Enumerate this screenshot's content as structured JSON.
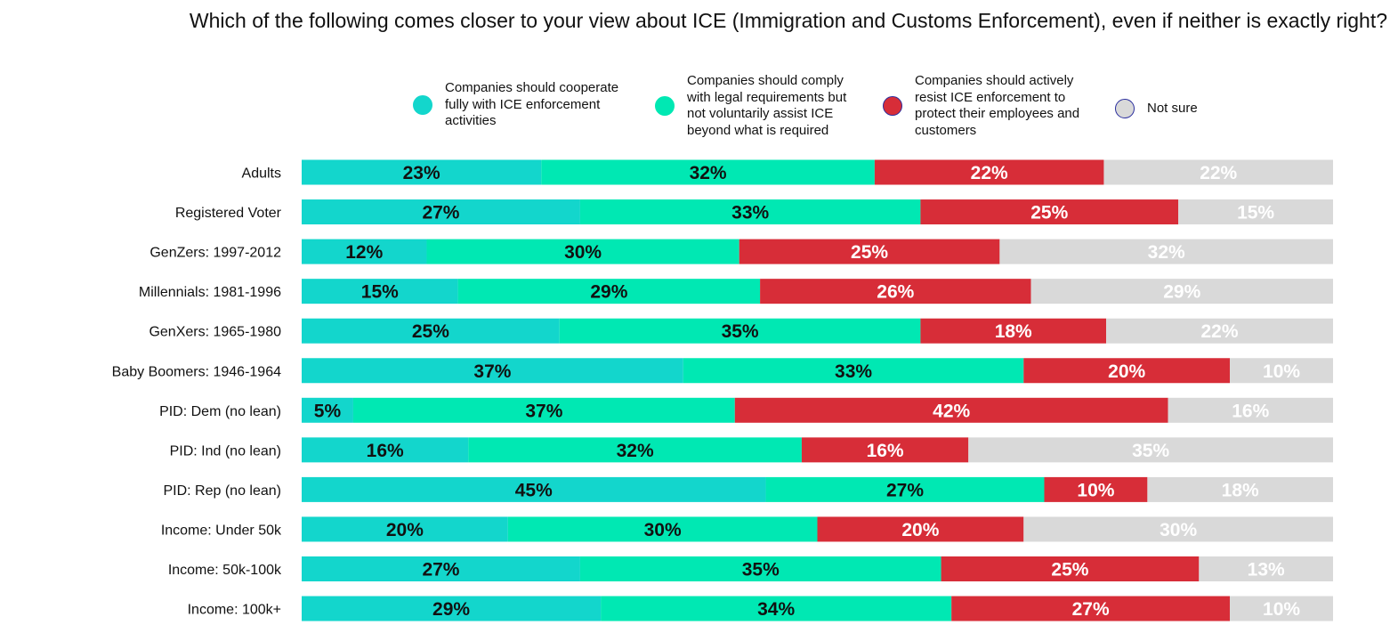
{
  "chart_data": {
    "type": "bar",
    "orientation": "horizontal",
    "stacked": true,
    "title": "Which of the following comes closer to your view about ICE (Immigration and Customs Enforcement), even if neither is exactly right?",
    "legend_position": "top",
    "categories": [
      "Adults",
      "Registered Voter",
      "GenZers: 1997-2012",
      "Millennials: 1981-1996",
      "GenXers: 1965-1980",
      "Baby Boomers: 1946-1964",
      "PID: Dem (no lean)",
      "PID: Ind (no lean)",
      "PID: Rep (no lean)",
      "Income: Under 50k",
      "Income: 50k-100k",
      "Income: 100k+"
    ],
    "series": [
      {
        "name": "Companies should cooperate fully with ICE enforcement activities",
        "legend_lines": [
          "Companies should cooperate",
          "fully with ICE enforcement",
          "activities"
        ],
        "color": "#13d6cc",
        "swatch_border": "#13d6cc",
        "label_color": "#111111",
        "values": [
          23,
          27,
          12,
          15,
          25,
          37,
          5,
          16,
          45,
          20,
          27,
          29
        ]
      },
      {
        "name": "Companies should comply with legal requirements but not voluntarily assist ICE beyond what is required",
        "legend_lines": [
          "Companies should comply",
          "with legal requirements but",
          "not voluntarily assist ICE",
          "beyond what is required"
        ],
        "color": "#00e8b3",
        "swatch_border": "#00e8b3",
        "label_color": "#111111",
        "values": [
          32,
          33,
          30,
          29,
          35,
          33,
          37,
          32,
          27,
          30,
          35,
          34
        ]
      },
      {
        "name": "Companies should actively resist ICE enforcement to protect their employees and customers",
        "legend_lines": [
          "Companies should actively",
          "resist ICE enforcement to",
          "protect their employees and",
          "customers"
        ],
        "color": "#d72d38",
        "swatch_border": "#2b2f9e",
        "label_color": "#ffffff",
        "values": [
          22,
          25,
          25,
          26,
          18,
          20,
          42,
          16,
          10,
          20,
          25,
          27
        ]
      },
      {
        "name": "Not sure",
        "legend_lines": [
          "Not sure"
        ],
        "color": "#d9d9d9",
        "swatch_border": "#2b2f9e",
        "label_color": "#ffffff",
        "values": [
          22,
          15,
          32,
          29,
          22,
          10,
          16,
          35,
          18,
          30,
          13,
          10
        ]
      }
    ]
  }
}
